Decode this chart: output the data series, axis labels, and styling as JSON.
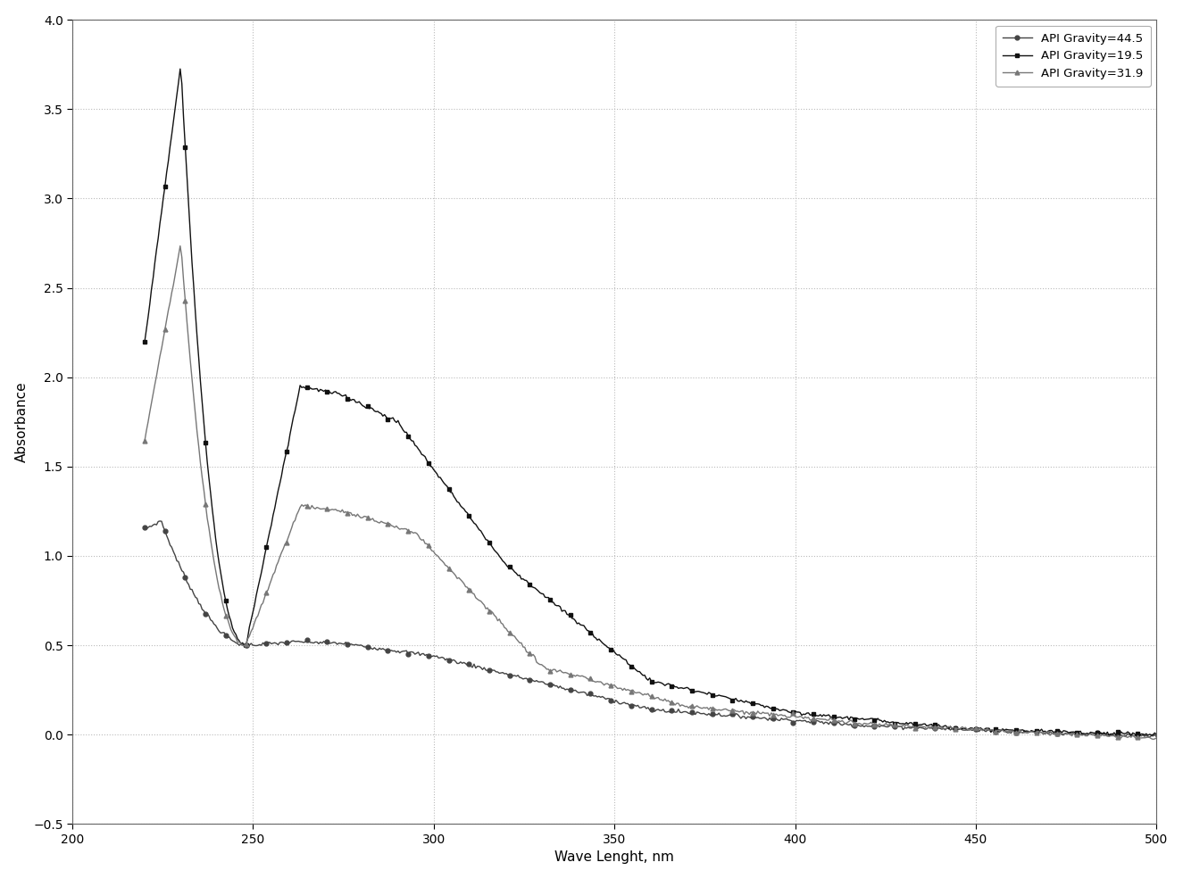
{
  "title": "",
  "xlabel": "Wave Lenght, nm",
  "ylabel": "Absorbance",
  "xlim": [
    200,
    500
  ],
  "ylim": [
    -0.5,
    4.0
  ],
  "yticks": [
    -0.5,
    0,
    0.5,
    1.0,
    1.5,
    2.0,
    2.5,
    3.0,
    3.5,
    4.0
  ],
  "xticks": [
    200,
    250,
    300,
    350,
    400,
    450,
    500
  ],
  "series": [
    {
      "label": "API Gravity=44.5",
      "marker": "o",
      "color": "#444444",
      "linewidth": 1.0,
      "markersize": 3.5
    },
    {
      "label": "API Gravity=19.5",
      "marker": "s",
      "color": "#111111",
      "linewidth": 1.0,
      "markersize": 3.5
    },
    {
      "label": "API Gravity=31.9",
      "marker": "^",
      "color": "#777777",
      "linewidth": 1.0,
      "markersize": 3.5
    }
  ],
  "background_color": "#ffffff",
  "grid_color": "#bbbbbb",
  "legend_loc": "upper right",
  "figure_width": 13.25,
  "figure_height": 9.85,
  "dpi": 100
}
